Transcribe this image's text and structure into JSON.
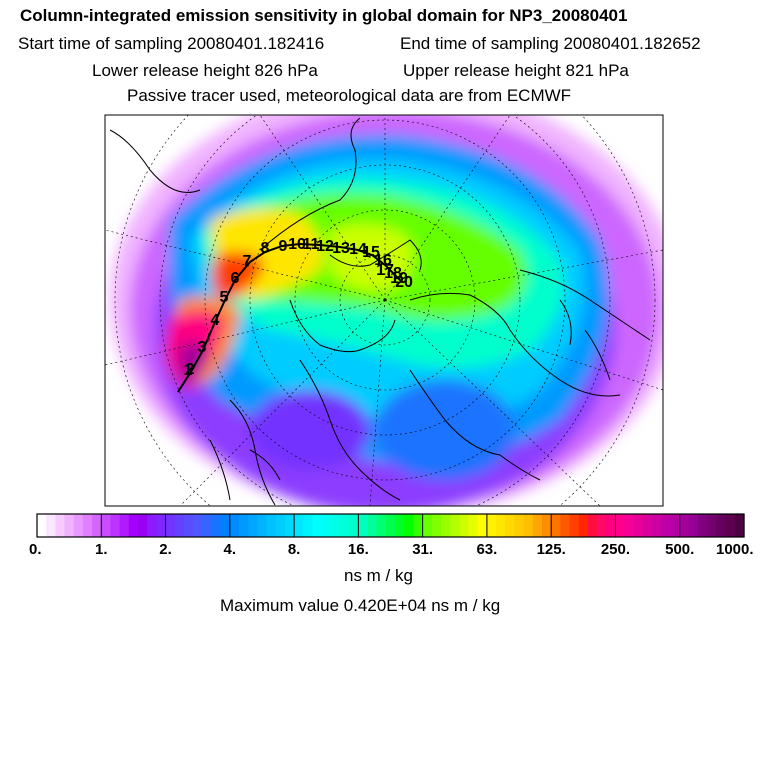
{
  "title": "Column-integrated emission sensitivity in global domain for NP3_20080401",
  "start_time": "Start time of sampling 20080401.182416",
  "end_time": "End time of sampling 20080401.182652",
  "lower_release": "Lower release height  826 hPa",
  "upper_release": "Upper release height  821 hPa",
  "passive_tracer": "Passive tracer used, meteorological data are from ECMWF",
  "units_label": "ns m / kg",
  "max_value": "Maximum value  0.420E+04 ns m / kg",
  "chart_data": {
    "type": "heatmap",
    "title": "Column-integrated emission sensitivity in global domain for NP3_20080401",
    "colorbar": {
      "tick_labels": [
        "0.",
        "1.",
        "2.",
        "4.",
        "8.",
        "16.",
        "31.",
        "63.",
        "125.",
        "250.",
        "500.",
        "1000."
      ],
      "colors": [
        "#ffffff",
        "#fbe6ff",
        "#f6ccff",
        "#f0b3ff",
        "#e899ff",
        "#e080ff",
        "#d466ff",
        "#c84dff",
        "#bc33ff",
        "#b01aff",
        "#a300ff",
        "#9900f2",
        "#8c1aff",
        "#8026ff",
        "#7333ff",
        "#6640ff",
        "#5a4dff",
        "#4d59ff",
        "#3366ff",
        "#1a73ff",
        "#0080ff",
        "#008cff",
        "#0099ff",
        "#00a6ff",
        "#00b3ff",
        "#00c0ff",
        "#00ccff",
        "#00d9ff",
        "#00e6ff",
        "#00f2ff",
        "#00ffff",
        "#00fff2",
        "#00ffe6",
        "#00ffd9",
        "#00ffcc",
        "#00ffbf",
        "#00ff99",
        "#00ff73",
        "#00ff4d",
        "#00ff26",
        "#00ff00",
        "#33ff00",
        "#66ff00",
        "#80ff00",
        "#99ff00",
        "#b3ff00",
        "#ccff00",
        "#e6ff00",
        "#ffff00",
        "#fff200",
        "#ffe600",
        "#ffd900",
        "#ffcc00",
        "#ffbf00",
        "#ffa600",
        "#ff8c00",
        "#ff7300",
        "#ff5900",
        "#ff4000",
        "#ff2600",
        "#ff0d40",
        "#ff0a66",
        "#ff0080",
        "#ff008c",
        "#f50099",
        "#e60099",
        "#d9009e",
        "#cc00a3",
        "#bf00a6",
        "#b300a3",
        "#a3009c",
        "#940094",
        "#800080",
        "#73006e",
        "#66005e",
        "#5c004f",
        "#4d0040"
      ]
    },
    "track_labels": [
      "1",
      "2",
      "3",
      "4",
      "5",
      "6",
      "7",
      "8",
      "9",
      "10",
      "11",
      "12",
      "13",
      "14",
      "15",
      "16",
      "17",
      "18",
      "19",
      "20"
    ]
  }
}
